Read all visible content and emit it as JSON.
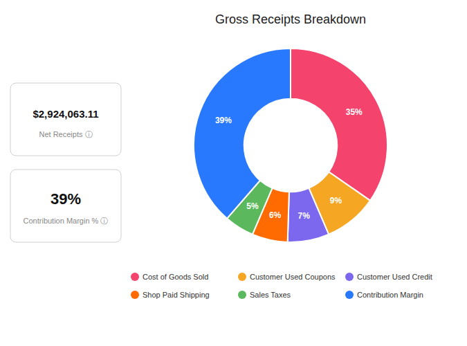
{
  "chart_data": {
    "type": "donut",
    "title": "Gross Receipts Breakdown",
    "categories": [
      "Cost of Goods Sold",
      "Customer Used Coupons",
      "Customer Used Credit",
      "Shop Paid Shipping",
      "Sales Taxes",
      "Contribution Margin"
    ],
    "values": [
      35,
      9,
      7,
      6,
      5,
      39
    ],
    "value_labels": [
      "35%",
      "9%",
      "7%",
      "6%",
      "5%",
      "39%"
    ],
    "colors": [
      "#F4436C",
      "#F5A623",
      "#7B68EE",
      "#FF6B00",
      "#5CB85C",
      "#2979FF"
    ],
    "data_labels": true,
    "legend": "bottom",
    "annotations": [
      "$2,924,063.11",
      "Net Receipts  ⓘ",
      "39%",
      "Contribution Margin %  ⓘ"
    ]
  }
}
